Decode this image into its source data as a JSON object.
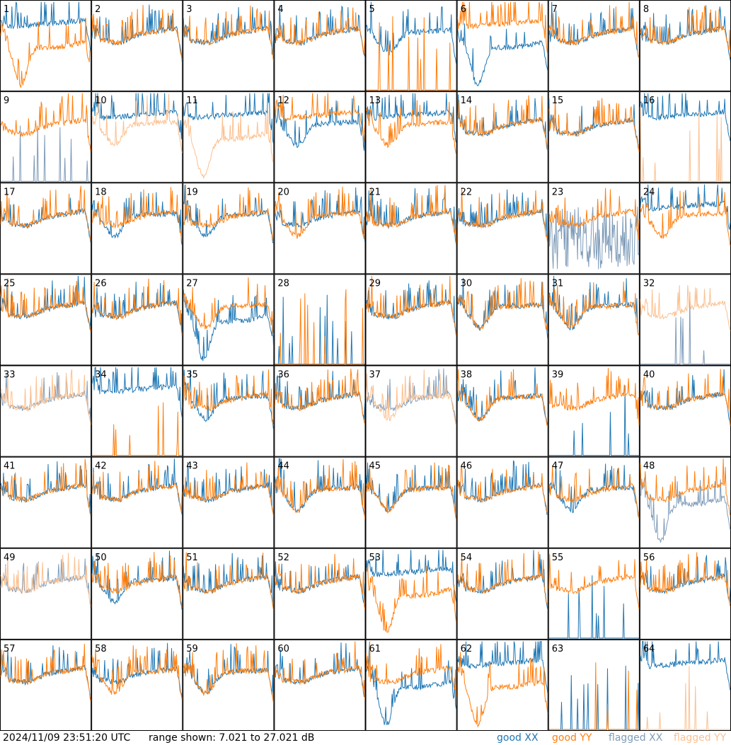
{
  "footer": {
    "timestamp": "2024/11/09 23:51:20 UTC",
    "range_label": "range shown: 7.021 to 27.021 dB"
  },
  "legend": [
    {
      "label": "good XX",
      "color": "#1f77b4"
    },
    {
      "label": "good YY",
      "color": "#ff7f0e"
    },
    {
      "label": "flagged XX",
      "color": "#7f9cb9"
    },
    {
      "label": "flagged YY",
      "color": "#fcc08f"
    }
  ],
  "colors": {
    "good_xx": "#1f77b4",
    "good_yy": "#ff7f0e",
    "flagged_xx": "#7f9cb9",
    "flagged_yy": "#fcc08f"
  },
  "chart_data": {
    "type": "line",
    "y_unit": "dB",
    "ylim": [
      7.021,
      27.021
    ],
    "panel_count": 64,
    "panels": [
      {
        "id": "1",
        "xx": "good",
        "yy": "good",
        "xx_shape": "high",
        "yy_shape": "deepdip"
      },
      {
        "id": "2",
        "xx": "good",
        "yy": "good",
        "xx_shape": "normal",
        "yy_shape": "normal"
      },
      {
        "id": "3",
        "xx": "good",
        "yy": "good",
        "xx_shape": "normal",
        "yy_shape": "normal"
      },
      {
        "id": "4",
        "xx": "good",
        "yy": "good",
        "xx_shape": "normal",
        "yy_shape": "normal"
      },
      {
        "id": "5",
        "xx": "good",
        "yy": "good",
        "xx_shape": "dip",
        "yy_shape": "dead"
      },
      {
        "id": "6",
        "xx": "good",
        "yy": "good",
        "xx_shape": "deepdip",
        "yy_shape": "high"
      },
      {
        "id": "7",
        "xx": "good",
        "yy": "good",
        "xx_shape": "normal",
        "yy_shape": "normal"
      },
      {
        "id": "8",
        "xx": "good",
        "yy": "good",
        "xx_shape": "normal",
        "yy_shape": "normal"
      },
      {
        "id": "9",
        "xx": "flagged",
        "yy": "good",
        "xx_shape": "dead",
        "yy_shape": "normal"
      },
      {
        "id": "10",
        "xx": "good",
        "yy": "flagged",
        "xx_shape": "high",
        "yy_shape": "dip"
      },
      {
        "id": "11",
        "xx": "good",
        "yy": "flagged",
        "xx_shape": "high",
        "yy_shape": "deepdip"
      },
      {
        "id": "12",
        "xx": "good",
        "yy": "good",
        "xx_shape": "dip",
        "yy_shape": "high"
      },
      {
        "id": "13",
        "xx": "good",
        "yy": "good",
        "xx_shape": "high",
        "yy_shape": "dip"
      },
      {
        "id": "14",
        "xx": "good",
        "yy": "good",
        "xx_shape": "normal",
        "yy_shape": "normal"
      },
      {
        "id": "15",
        "xx": "good",
        "yy": "good",
        "xx_shape": "normal",
        "yy_shape": "normal"
      },
      {
        "id": "16",
        "xx": "good",
        "yy": "flagged",
        "xx_shape": "high",
        "yy_shape": "dead"
      },
      {
        "id": "17",
        "xx": "good",
        "yy": "good",
        "xx_shape": "normal",
        "yy_shape": "normal"
      },
      {
        "id": "18",
        "xx": "good",
        "yy": "good",
        "xx_shape": "dip",
        "yy_shape": "normal"
      },
      {
        "id": "19",
        "xx": "good",
        "yy": "good",
        "xx_shape": "dip",
        "yy_shape": "normal"
      },
      {
        "id": "20",
        "xx": "good",
        "yy": "good",
        "xx_shape": "normal",
        "yy_shape": "dip"
      },
      {
        "id": "21",
        "xx": "good",
        "yy": "good",
        "xx_shape": "normal",
        "yy_shape": "normal"
      },
      {
        "id": "22",
        "xx": "good",
        "yy": "good",
        "xx_shape": "normal",
        "yy_shape": "normal"
      },
      {
        "id": "23",
        "xx": "flagged",
        "yy": "good",
        "xx_shape": "noisy",
        "yy_shape": "normal"
      },
      {
        "id": "24",
        "xx": "good",
        "yy": "good",
        "xx_shape": "high",
        "yy_shape": "dip"
      },
      {
        "id": "25",
        "xx": "good",
        "yy": "good",
        "xx_shape": "normal",
        "yy_shape": "normal"
      },
      {
        "id": "26",
        "xx": "good",
        "yy": "good",
        "xx_shape": "normal",
        "yy_shape": "normal"
      },
      {
        "id": "27",
        "xx": "good",
        "yy": "good",
        "xx_shape": "deepdip",
        "yy_shape": "dip"
      },
      {
        "id": "28",
        "xx": "good",
        "yy": "good",
        "xx_shape": "dead",
        "yy_shape": "dead"
      },
      {
        "id": "29",
        "xx": "good",
        "yy": "good",
        "xx_shape": "normal",
        "yy_shape": "normal"
      },
      {
        "id": "30",
        "xx": "good",
        "yy": "good",
        "xx_shape": "dip",
        "yy_shape": "dip"
      },
      {
        "id": "31",
        "xx": "good",
        "yy": "good",
        "xx_shape": "dip",
        "yy_shape": "dip"
      },
      {
        "id": "32",
        "xx": "flagged",
        "yy": "flagged",
        "xx_shape": "dead",
        "yy_shape": "normal"
      },
      {
        "id": "33",
        "xx": "flagged",
        "yy": "flagged",
        "xx_shape": "normal",
        "yy_shape": "normal"
      },
      {
        "id": "34",
        "xx": "good",
        "yy": "good",
        "xx_shape": "high",
        "yy_shape": "dead"
      },
      {
        "id": "35",
        "xx": "good",
        "yy": "good",
        "xx_shape": "dip",
        "yy_shape": "normal"
      },
      {
        "id": "36",
        "xx": "good",
        "yy": "good",
        "xx_shape": "normal",
        "yy_shape": "normal"
      },
      {
        "id": "37",
        "xx": "flagged",
        "yy": "flagged",
        "xx_shape": "normal",
        "yy_shape": "dip"
      },
      {
        "id": "38",
        "xx": "good",
        "yy": "good",
        "xx_shape": "dip",
        "yy_shape": "dip"
      },
      {
        "id": "39",
        "xx": "good",
        "yy": "good",
        "xx_shape": "dead",
        "yy_shape": "normal"
      },
      {
        "id": "40",
        "xx": "good",
        "yy": "good",
        "xx_shape": "normal",
        "yy_shape": "normal"
      },
      {
        "id": "41",
        "xx": "good",
        "yy": "good",
        "xx_shape": "normal",
        "yy_shape": "normal"
      },
      {
        "id": "42",
        "xx": "good",
        "yy": "good",
        "xx_shape": "normal",
        "yy_shape": "normal"
      },
      {
        "id": "43",
        "xx": "good",
        "yy": "good",
        "xx_shape": "normal",
        "yy_shape": "normal"
      },
      {
        "id": "44",
        "xx": "good",
        "yy": "good",
        "xx_shape": "dip",
        "yy_shape": "dip"
      },
      {
        "id": "45",
        "xx": "good",
        "yy": "good",
        "xx_shape": "dip",
        "yy_shape": "dip"
      },
      {
        "id": "46",
        "xx": "good",
        "yy": "good",
        "xx_shape": "normal",
        "yy_shape": "normal"
      },
      {
        "id": "47",
        "xx": "good",
        "yy": "good",
        "xx_shape": "dip",
        "yy_shape": "normal"
      },
      {
        "id": "48",
        "xx": "flagged",
        "yy": "good",
        "xx_shape": "deepdip",
        "yy_shape": "normal"
      },
      {
        "id": "49",
        "xx": "flagged",
        "yy": "flagged",
        "xx_shape": "normal",
        "yy_shape": "normal"
      },
      {
        "id": "50",
        "xx": "good",
        "yy": "good",
        "xx_shape": "dip",
        "yy_shape": "normal"
      },
      {
        "id": "51",
        "xx": "good",
        "yy": "good",
        "xx_shape": "normal",
        "yy_shape": "normal"
      },
      {
        "id": "52",
        "xx": "good",
        "yy": "good",
        "xx_shape": "normal",
        "yy_shape": "normal"
      },
      {
        "id": "53",
        "xx": "good",
        "yy": "good",
        "xx_shape": "high",
        "yy_shape": "deepdip"
      },
      {
        "id": "54",
        "xx": "good",
        "yy": "good",
        "xx_shape": "normal",
        "yy_shape": "normal"
      },
      {
        "id": "55",
        "xx": "good",
        "yy": "good",
        "xx_shape": "dead",
        "yy_shape": "normal"
      },
      {
        "id": "56",
        "xx": "good",
        "yy": "good",
        "xx_shape": "normal",
        "yy_shape": "normal"
      },
      {
        "id": "57",
        "xx": "good",
        "yy": "good",
        "xx_shape": "normal",
        "yy_shape": "normal"
      },
      {
        "id": "58",
        "xx": "good",
        "yy": "good",
        "xx_shape": "normal",
        "yy_shape": "dip"
      },
      {
        "id": "59",
        "xx": "good",
        "yy": "good",
        "xx_shape": "dip",
        "yy_shape": "dip"
      },
      {
        "id": "60",
        "xx": "good",
        "yy": "good",
        "xx_shape": "normal",
        "yy_shape": "normal"
      },
      {
        "id": "61",
        "xx": "good",
        "yy": "good",
        "xx_shape": "deepdip",
        "yy_shape": "normal"
      },
      {
        "id": "62",
        "xx": "good",
        "yy": "good",
        "xx_shape": "high",
        "yy_shape": "deepdip"
      },
      {
        "id": "63",
        "xx": "good",
        "yy": "good",
        "xx_shape": "dead",
        "yy_shape": "dead"
      },
      {
        "id": "64",
        "xx": "good",
        "yy": "flagged",
        "xx_shape": "high",
        "yy_shape": "dead"
      }
    ]
  }
}
